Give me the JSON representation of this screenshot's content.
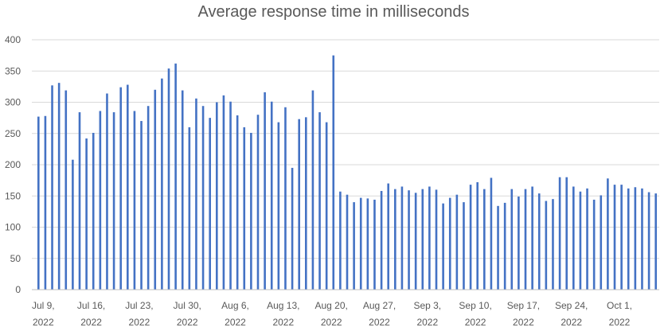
{
  "chart_data": {
    "type": "bar",
    "title": "Average response time in milliseconds",
    "xlabel": "",
    "ylabel": "",
    "ylim": [
      0,
      400
    ],
    "yticks": [
      0,
      50,
      100,
      150,
      200,
      250,
      300,
      350,
      400
    ],
    "grid": true,
    "legend": "none",
    "bar_color": "#4472c4",
    "x_tick_labels": [
      {
        "line1": "Jul 9,",
        "line2": "2022",
        "date": "2022-07-09"
      },
      {
        "line1": "Jul 16,",
        "line2": "2022",
        "date": "2022-07-16"
      },
      {
        "line1": "Jul 23,",
        "line2": "2022",
        "date": "2022-07-23"
      },
      {
        "line1": "Jul 30,",
        "line2": "2022",
        "date": "2022-07-30"
      },
      {
        "line1": "Aug 6,",
        "line2": "2022",
        "date": "2022-08-06"
      },
      {
        "line1": "Aug 13,",
        "line2": "2022",
        "date": "2022-08-13"
      },
      {
        "line1": "Aug 20,",
        "line2": "2022",
        "date": "2022-08-20"
      },
      {
        "line1": "Aug 27,",
        "line2": "2022",
        "date": "2022-08-27"
      },
      {
        "line1": "Sep 3,",
        "line2": "2022",
        "date": "2022-09-03"
      },
      {
        "line1": "Sep 10,",
        "line2": "2022",
        "date": "2022-09-10"
      },
      {
        "line1": "Sep 17,",
        "line2": "2022",
        "date": "2022-09-17"
      },
      {
        "line1": "Sep 24,",
        "line2": "2022",
        "date": "2022-09-24"
      },
      {
        "line1": "Oct 1,",
        "line2": "2022",
        "date": "2022-10-01"
      }
    ],
    "x_start": "2022-07-09",
    "values": [
      277,
      278,
      327,
      331,
      319,
      208,
      284,
      242,
      251,
      286,
      314,
      284,
      324,
      328,
      286,
      270,
      294,
      320,
      338,
      354,
      362,
      319,
      260,
      306,
      294,
      275,
      300,
      311,
      301,
      279,
      260,
      251,
      280,
      316,
      301,
      268,
      292,
      195,
      273,
      276,
      319,
      284,
      268,
      375,
      157,
      152,
      140,
      147,
      146,
      144,
      158,
      170,
      161,
      165,
      159,
      155,
      161,
      165,
      160,
      138,
      147,
      152,
      140,
      168,
      172,
      161,
      179,
      134,
      139,
      161,
      149,
      161,
      165,
      154,
      142,
      145,
      180,
      180,
      165,
      157,
      162,
      144,
      151,
      178,
      168,
      168,
      162,
      164,
      162,
      156,
      154
    ]
  }
}
